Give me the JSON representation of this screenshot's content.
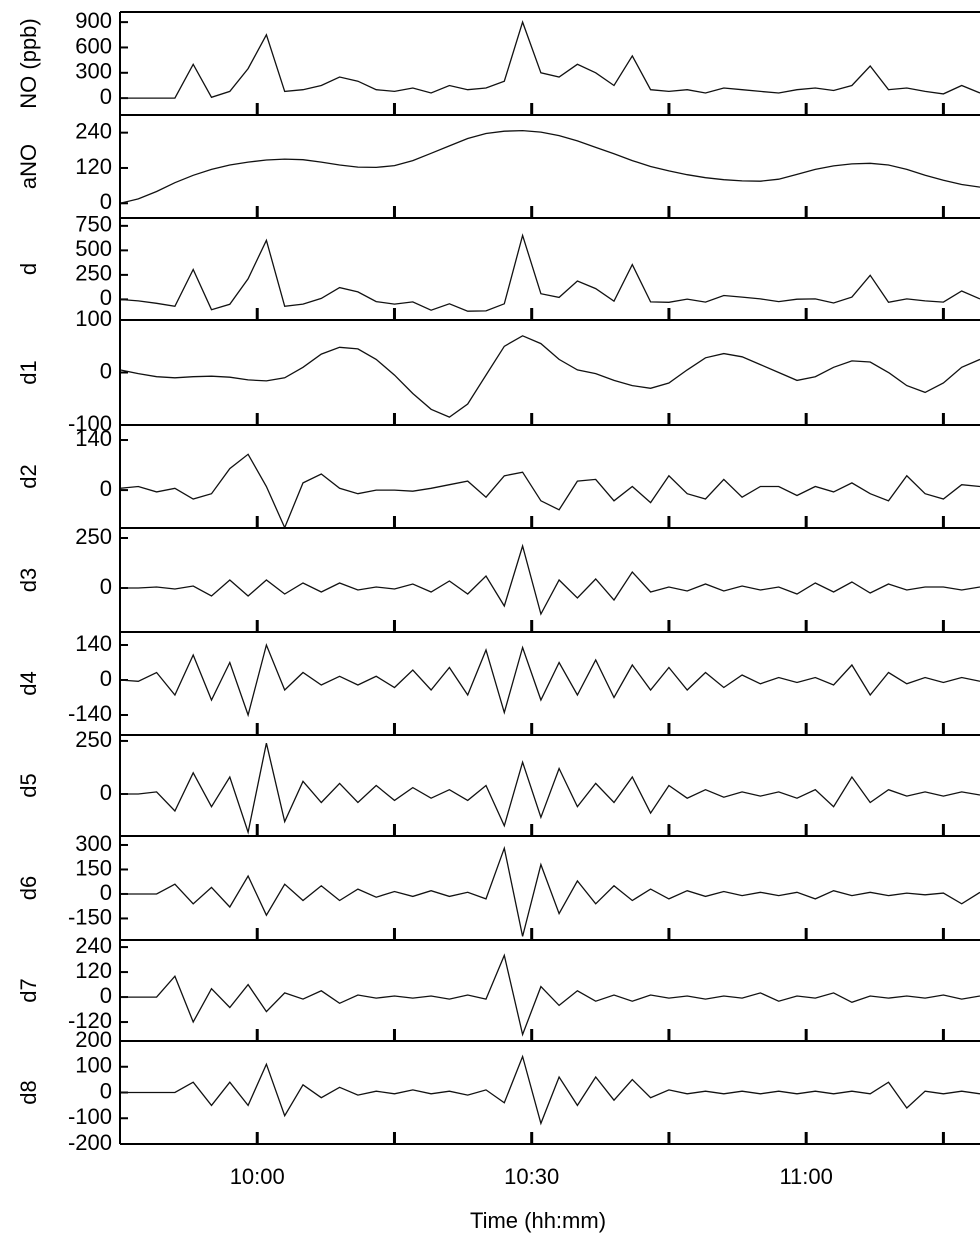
{
  "chart_data": [
    {
      "type": "line",
      "ylabel": "NO (ppb)",
      "ylim": [
        -200,
        1020
      ],
      "yticks": [
        0,
        300,
        600,
        900
      ],
      "x": [
        585,
        587,
        589,
        591,
        593,
        595,
        597,
        599,
        601,
        603,
        605,
        607,
        609,
        611,
        613,
        615,
        617,
        619,
        621,
        623,
        625,
        627,
        629,
        631,
        633,
        635,
        637,
        639,
        641,
        643,
        645,
        647,
        649,
        651,
        653,
        655,
        657,
        659,
        661,
        663,
        665,
        667,
        669,
        671,
        673,
        675,
        677,
        679
      ],
      "values": [
        0,
        0,
        0,
        0,
        400,
        10,
        80,
        350,
        750,
        80,
        100,
        150,
        250,
        200,
        100,
        80,
        120,
        60,
        150,
        100,
        120,
        200,
        900,
        300,
        250,
        400,
        300,
        150,
        500,
        100,
        80,
        100,
        60,
        120,
        100,
        80,
        60,
        100,
        120,
        90,
        150,
        380,
        100,
        120,
        80,
        50,
        150,
        60
      ]
    },
    {
      "type": "line",
      "ylabel": "aNO",
      "ylim": [
        -50,
        300
      ],
      "yticks": [
        0,
        120,
        240
      ],
      "x": [
        585,
        587,
        589,
        591,
        593,
        595,
        597,
        599,
        601,
        603,
        605,
        607,
        609,
        611,
        613,
        615,
        617,
        619,
        621,
        623,
        625,
        627,
        629,
        631,
        633,
        635,
        637,
        639,
        641,
        643,
        645,
        647,
        649,
        651,
        653,
        655,
        657,
        659,
        661,
        663,
        665,
        667,
        669,
        671,
        673,
        675,
        677,
        679
      ],
      "values": [
        0,
        15,
        40,
        70,
        95,
        115,
        130,
        140,
        147,
        150,
        148,
        140,
        130,
        123,
        122,
        128,
        145,
        170,
        195,
        220,
        237,
        245,
        247,
        242,
        230,
        212,
        190,
        168,
        145,
        125,
        110,
        97,
        87,
        80,
        76,
        75,
        82,
        98,
        115,
        127,
        134,
        136,
        130,
        115,
        95,
        78,
        64,
        55
      ]
    },
    {
      "type": "line",
      "ylabel": "d",
      "ylim": [
        -210,
        830
      ],
      "yticks": [
        0,
        250,
        500,
        750
      ],
      "x": [
        585,
        587,
        589,
        591,
        593,
        595,
        597,
        599,
        601,
        603,
        605,
        607,
        609,
        611,
        613,
        615,
        617,
        619,
        621,
        623,
        625,
        627,
        629,
        631,
        633,
        635,
        637,
        639,
        641,
        643,
        645,
        647,
        649,
        651,
        653,
        655,
        657,
        659,
        661,
        663,
        665,
        667,
        669,
        671,
        673,
        675,
        677,
        679
      ],
      "values": [
        0,
        -15,
        -40,
        -70,
        305,
        -105,
        -50,
        210,
        603,
        -70,
        -48,
        10,
        120,
        77,
        -22,
        -48,
        -25,
        -110,
        -45,
        -120,
        -117,
        -45,
        653,
        58,
        20,
        188,
        110,
        -18,
        355,
        -25,
        -30,
        3,
        -27,
        40,
        24,
        5,
        -22,
        2,
        5,
        -37,
        23,
        246,
        -30,
        5,
        -15,
        -28,
        86,
        5
      ]
    },
    {
      "type": "line",
      "ylabel": "d1",
      "ylim": [
        -100,
        100
      ],
      "yticks": [
        -100,
        0,
        100
      ],
      "x": [
        585,
        587,
        589,
        591,
        593,
        595,
        597,
        599,
        601,
        603,
        605,
        607,
        609,
        611,
        613,
        615,
        617,
        619,
        621,
        623,
        625,
        627,
        629,
        631,
        633,
        635,
        637,
        639,
        641,
        643,
        645,
        647,
        649,
        651,
        653,
        655,
        657,
        659,
        661,
        663,
        665,
        667,
        669,
        671,
        673,
        675,
        677,
        679
      ],
      "values": [
        5,
        -2,
        -8,
        -10,
        -8,
        -7,
        -9,
        -14,
        -16,
        -10,
        10,
        35,
        48,
        45,
        25,
        -5,
        -40,
        -70,
        -85,
        -60,
        -5,
        50,
        70,
        55,
        25,
        5,
        -2,
        -15,
        -25,
        -30,
        -20,
        5,
        28,
        36,
        30,
        15,
        0,
        -15,
        -8,
        10,
        22,
        20,
        0,
        -25,
        -38,
        -20,
        10,
        25
      ]
    },
    {
      "type": "line",
      "ylabel": "d2",
      "ylim": [
        -106,
        182
      ],
      "yticks": [
        0,
        140
      ],
      "x": [
        585,
        587,
        589,
        591,
        593,
        595,
        597,
        599,
        601,
        603,
        605,
        607,
        609,
        611,
        613,
        615,
        617,
        619,
        621,
        623,
        625,
        627,
        629,
        631,
        633,
        635,
        637,
        639,
        641,
        643,
        645,
        647,
        649,
        651,
        653,
        655,
        657,
        659,
        661,
        663,
        665,
        667,
        669,
        671,
        673,
        675,
        677,
        679
      ],
      "values": [
        5,
        10,
        -5,
        5,
        -25,
        -10,
        60,
        100,
        10,
        -105,
        20,
        45,
        5,
        -10,
        0,
        0,
        -3,
        5,
        15,
        25,
        -20,
        40,
        50,
        -30,
        -55,
        25,
        30,
        -30,
        10,
        -35,
        40,
        -10,
        -25,
        30,
        -20,
        10,
        10,
        -15,
        10,
        -5,
        20,
        -10,
        -30,
        40,
        -10,
        -25,
        15,
        10
      ]
    },
    {
      "type": "line",
      "ylabel": "d3",
      "ylim": [
        -220,
        300
      ],
      "yticks": [
        0,
        250
      ],
      "x": [
        585,
        587,
        589,
        591,
        593,
        595,
        597,
        599,
        601,
        603,
        605,
        607,
        609,
        611,
        613,
        615,
        617,
        619,
        621,
        623,
        625,
        627,
        629,
        631,
        633,
        635,
        637,
        639,
        641,
        643,
        645,
        647,
        649,
        651,
        653,
        655,
        657,
        659,
        661,
        663,
        665,
        667,
        669,
        671,
        673,
        675,
        677,
        679
      ],
      "values": [
        0,
        0,
        5,
        -5,
        10,
        -40,
        40,
        -40,
        40,
        -30,
        25,
        -20,
        25,
        -10,
        5,
        -5,
        20,
        -20,
        35,
        -30,
        60,
        -90,
        210,
        -130,
        40,
        -50,
        45,
        -60,
        80,
        -20,
        5,
        -15,
        20,
        -15,
        10,
        -10,
        5,
        -30,
        25,
        -20,
        30,
        -25,
        20,
        -10,
        5,
        5,
        -10,
        5
      ]
    },
    {
      "type": "line",
      "ylabel": "d4",
      "ylim": [
        -220,
        192
      ],
      "yticks": [
        -140,
        0,
        140
      ],
      "x": [
        585,
        587,
        589,
        591,
        593,
        595,
        597,
        599,
        601,
        603,
        605,
        607,
        609,
        611,
        613,
        615,
        617,
        619,
        621,
        623,
        625,
        627,
        629,
        631,
        633,
        635,
        637,
        639,
        641,
        643,
        645,
        647,
        649,
        651,
        653,
        655,
        657,
        659,
        661,
        663,
        665,
        667,
        669,
        671,
        673,
        675,
        677,
        679
      ],
      "values": [
        0,
        -5,
        30,
        -60,
        100,
        -80,
        70,
        -140,
        140,
        -40,
        30,
        -20,
        15,
        -20,
        15,
        -30,
        40,
        -40,
        50,
        -60,
        120,
        -130,
        130,
        -80,
        70,
        -60,
        80,
        -70,
        60,
        -40,
        50,
        -40,
        30,
        -30,
        20,
        -15,
        10,
        -10,
        10,
        -20,
        60,
        -60,
        30,
        -15,
        10,
        -10,
        10,
        -5
      ]
    },
    {
      "type": "line",
      "ylabel": "d5",
      "ylim": [
        -198,
        278
      ],
      "yticks": [
        0,
        250
      ],
      "x": [
        585,
        587,
        589,
        591,
        593,
        595,
        597,
        599,
        601,
        603,
        605,
        607,
        609,
        611,
        613,
        615,
        617,
        619,
        621,
        623,
        625,
        627,
        629,
        631,
        633,
        635,
        637,
        639,
        641,
        643,
        645,
        647,
        649,
        651,
        653,
        655,
        657,
        659,
        661,
        663,
        665,
        667,
        669,
        671,
        673,
        675,
        677,
        679
      ],
      "values": [
        0,
        0,
        10,
        -80,
        100,
        -60,
        80,
        -180,
        240,
        -130,
        60,
        -40,
        50,
        -40,
        40,
        -30,
        30,
        -20,
        20,
        -30,
        40,
        -150,
        150,
        -110,
        120,
        -60,
        50,
        -40,
        80,
        -90,
        40,
        -20,
        20,
        -15,
        10,
        -10,
        10,
        -20,
        20,
        -60,
        80,
        -40,
        20,
        -10,
        10,
        -10,
        10,
        -5
      ]
    },
    {
      "type": "line",
      "ylabel": "d6",
      "ylim": [
        -282,
        355
      ],
      "yticks": [
        -150,
        0,
        150,
        300
      ],
      "x": [
        585,
        587,
        589,
        591,
        593,
        595,
        597,
        599,
        601,
        603,
        605,
        607,
        609,
        611,
        613,
        615,
        617,
        619,
        621,
        623,
        625,
        627,
        629,
        631,
        633,
        635,
        637,
        639,
        641,
        643,
        645,
        647,
        649,
        651,
        653,
        655,
        657,
        659,
        661,
        663,
        665,
        667,
        669,
        671,
        673,
        675,
        677,
        679
      ],
      "values": [
        0,
        0,
        0,
        60,
        -60,
        40,
        -80,
        110,
        -130,
        60,
        -40,
        50,
        -40,
        30,
        -20,
        15,
        -15,
        20,
        -15,
        10,
        -30,
        280,
        -260,
        180,
        -120,
        80,
        -60,
        50,
        -40,
        30,
        -30,
        20,
        -15,
        15,
        -10,
        10,
        -10,
        10,
        -30,
        20,
        -10,
        10,
        -10,
        5,
        -5,
        5,
        -60,
        10
      ]
    },
    {
      "type": "line",
      "ylabel": "d7",
      "ylim": [
        -211,
        274
      ],
      "yticks": [
        -120,
        0,
        120,
        240
      ],
      "x": [
        585,
        587,
        589,
        591,
        593,
        595,
        597,
        599,
        601,
        603,
        605,
        607,
        609,
        611,
        613,
        615,
        617,
        619,
        621,
        623,
        625,
        627,
        629,
        631,
        633,
        635,
        637,
        639,
        641,
        643,
        645,
        647,
        649,
        651,
        653,
        655,
        657,
        659,
        661,
        663,
        665,
        667,
        669,
        671,
        673,
        675,
        677,
        679
      ],
      "values": [
        0,
        0,
        0,
        100,
        -120,
        40,
        -50,
        60,
        -70,
        20,
        -10,
        30,
        -30,
        10,
        -5,
        5,
        -5,
        5,
        -10,
        10,
        -10,
        200,
        -180,
        50,
        -40,
        30,
        -20,
        10,
        -20,
        10,
        -5,
        5,
        -10,
        5,
        -5,
        20,
        -20,
        5,
        -5,
        20,
        -25,
        5,
        -5,
        5,
        -5,
        10,
        -10,
        5
      ]
    },
    {
      "type": "line",
      "ylabel": "d8",
      "ylim": [
        -200,
        200
      ],
      "yticks": [
        -200,
        -100,
        0,
        100,
        200
      ],
      "x": [
        585,
        587,
        589,
        591,
        593,
        595,
        597,
        599,
        601,
        603,
        605,
        607,
        609,
        611,
        613,
        615,
        617,
        619,
        621,
        623,
        625,
        627,
        629,
        631,
        633,
        635,
        637,
        639,
        641,
        643,
        645,
        647,
        649,
        651,
        653,
        655,
        657,
        659,
        661,
        663,
        665,
        667,
        669,
        671,
        673,
        675,
        677,
        679
      ],
      "values": [
        0,
        0,
        0,
        0,
        40,
        -50,
        40,
        -50,
        110,
        -90,
        30,
        -20,
        20,
        -10,
        5,
        -5,
        10,
        -5,
        5,
        -10,
        10,
        -40,
        140,
        -120,
        60,
        -50,
        60,
        -30,
        50,
        -20,
        10,
        -5,
        5,
        -5,
        5,
        -5,
        5,
        -5,
        5,
        -5,
        5,
        -5,
        40,
        -60,
        5,
        -5,
        5,
        -5
      ],
      "xlabel": "Time (hh:mm)",
      "xlim": [
        585,
        679
      ],
      "xticks": [
        {
          "value": 600,
          "label": "10:00"
        },
        {
          "value": 630,
          "label": "10:30"
        },
        {
          "value": 660,
          "label": "11:00"
        }
      ],
      "xminorticks": [
        615,
        645,
        675
      ]
    }
  ]
}
